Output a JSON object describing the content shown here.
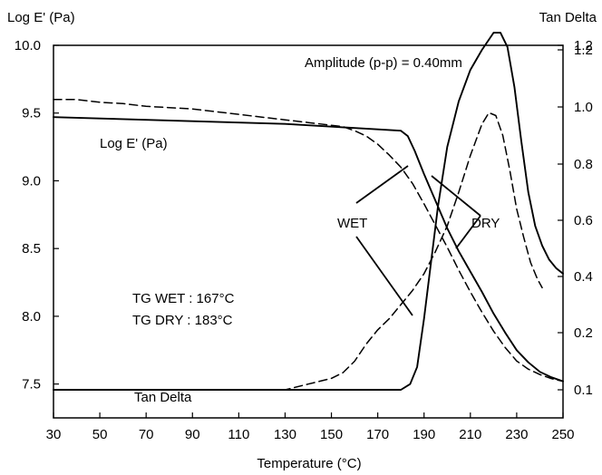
{
  "chart_data": {
    "type": "line",
    "title": "",
    "xlabel": "Temperature (°C)",
    "ylabel_left": "Log E' (Pa)",
    "ylabel_right": "Tan Delta",
    "xlim": [
      30,
      250
    ],
    "ylim_left": [
      7.25,
      10.0
    ],
    "ylim_right": [
      0.0,
      1.2
    ],
    "x_ticks": [
      "30",
      "50",
      "70",
      "90",
      "110",
      "130",
      "150",
      "170",
      "190",
      "210",
      "230",
      "250"
    ],
    "y_left_ticks": [
      "7.5",
      "8.0",
      "8.5",
      "9.0",
      "9.5",
      "10.0"
    ],
    "y_right_ticks": [
      "0.1",
      "0.2",
      "0.4",
      "0.6",
      "0.8",
      "1.0",
      "1.2",
      "1.2"
    ],
    "grid": false,
    "series": [
      {
        "name": "WET",
        "style": "dashed",
        "axis": "left",
        "measure": "Log E' (Pa)",
        "x": [
          30,
          40,
          50,
          60,
          70,
          80,
          90,
          100,
          110,
          120,
          130,
          140,
          150,
          155,
          160,
          165,
          170,
          175,
          180,
          185,
          190,
          195,
          200,
          205,
          210,
          215,
          220,
          225,
          230,
          235,
          240,
          245,
          250
        ],
        "y": [
          9.6,
          9.6,
          9.58,
          9.57,
          9.55,
          9.54,
          9.53,
          9.51,
          9.49,
          9.47,
          9.45,
          9.43,
          9.41,
          9.4,
          9.37,
          9.33,
          9.27,
          9.19,
          9.1,
          8.98,
          8.83,
          8.67,
          8.51,
          8.34,
          8.18,
          8.03,
          7.89,
          7.77,
          7.67,
          7.61,
          7.57,
          7.54,
          7.52
        ]
      },
      {
        "name": "DRY",
        "style": "solid",
        "axis": "left",
        "measure": "Log E' (Pa)",
        "x": [
          30,
          50,
          70,
          90,
          110,
          130,
          150,
          160,
          170,
          180,
          183,
          186,
          190,
          195,
          200,
          205,
          210,
          215,
          220,
          225,
          230,
          235,
          240,
          245,
          250
        ],
        "y": [
          9.47,
          9.46,
          9.45,
          9.44,
          9.43,
          9.42,
          9.4,
          9.39,
          9.38,
          9.37,
          9.33,
          9.22,
          9.05,
          8.85,
          8.65,
          8.48,
          8.33,
          8.18,
          8.02,
          7.88,
          7.75,
          7.66,
          7.59,
          7.55,
          7.52
        ]
      },
      {
        "name": "WET",
        "style": "dashed",
        "axis": "right",
        "measure": "Tan Delta",
        "x": [
          30,
          50,
          70,
          90,
          110,
          130,
          140,
          150,
          155,
          160,
          165,
          170,
          175,
          180,
          185,
          190,
          195,
          200,
          205,
          210,
          215,
          218,
          221,
          224,
          227,
          230,
          233,
          236,
          239,
          241
        ],
        "y": [
          0.1,
          0.1,
          0.1,
          0.1,
          0.1,
          0.1,
          0.11,
          0.12,
          0.13,
          0.15,
          0.18,
          0.21,
          0.25,
          0.3,
          0.35,
          0.41,
          0.49,
          0.58,
          0.7,
          0.83,
          0.94,
          0.98,
          0.97,
          0.9,
          0.78,
          0.64,
          0.54,
          0.45,
          0.39,
          0.36
        ]
      },
      {
        "name": "DRY",
        "style": "solid",
        "axis": "right",
        "measure": "Tan Delta",
        "x": [
          30,
          50,
          70,
          90,
          110,
          130,
          150,
          170,
          180,
          184,
          187,
          190,
          193,
          196,
          200,
          205,
          210,
          215,
          220,
          223,
          226,
          229,
          232,
          235,
          238,
          241,
          244,
          247,
          250
        ],
        "y": [
          0.1,
          0.1,
          0.1,
          0.1,
          0.1,
          0.1,
          0.1,
          0.1,
          0.1,
          0.11,
          0.14,
          0.25,
          0.45,
          0.65,
          0.86,
          1.02,
          1.13,
          1.2,
          1.26,
          1.26,
          1.21,
          1.07,
          0.88,
          0.7,
          0.58,
          0.51,
          0.46,
          0.43,
          0.41
        ]
      }
    ],
    "annotations": {
      "amplitude": "Amplitude (p-p) = 0.40mm",
      "loge_label": "Log E' (Pa)",
      "tan_label": "Tan Delta",
      "wet_label": "WET",
      "dry_label": "DRY",
      "tg_wet": "TG WET : 167°C",
      "tg_dry": "TG DRY : 183°C"
    },
    "legend": "none"
  }
}
